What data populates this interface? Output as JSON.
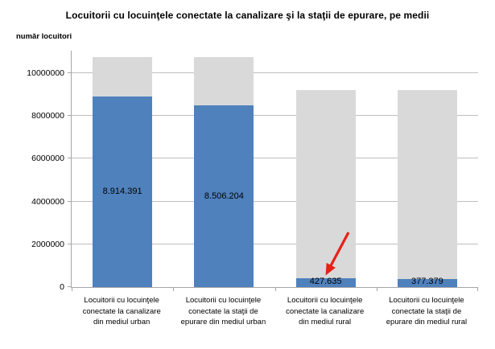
{
  "chart_data": {
    "type": "bar",
    "title": "Locuitorii cu locuinţele conectate la canalizare şi la staţii de epurare, pe medii",
    "ylabel": "număr locuitori",
    "xlabel": "",
    "grid": true,
    "legend": "none",
    "ylim": [
      0,
      11050000
    ],
    "yticks": [
      0,
      2000000,
      4000000,
      6000000,
      8000000,
      10000000
    ],
    "ytick_labels": [
      "0",
      "2000000",
      "4000000",
      "6000000",
      "8000000",
      "10000000"
    ],
    "categories": [
      [
        "Locuitorii cu locuinţele",
        "conectate la canalizare",
        "din mediul urban"
      ],
      [
        "Locuitorii cu locuinţele",
        "conectate la staţii de",
        "epurare din mediul urban"
      ],
      [
        "Locuitorii cu locuinţele",
        "conectate la canalizare",
        "din mediul rural"
      ],
      [
        "Locuitorii cu locuinţele",
        "conectate la staţii de",
        "epurare din mediul rural"
      ]
    ],
    "series": [
      {
        "name": "total-populatie-fundal",
        "color": "#d9d9d9",
        "values": [
          10750000,
          10750000,
          9200000,
          9200000
        ]
      },
      {
        "name": "locuitori-conectati",
        "color": "#4f81bd",
        "values": [
          8914391,
          8506204,
          427635,
          377379
        ]
      }
    ],
    "data_labels": [
      "8.914.391",
      "8.506.204",
      "427.635",
      "377.379"
    ],
    "annotation": {
      "shape": "red-arrow",
      "points_to": "427.635",
      "color": "#e62117"
    },
    "colors": {
      "gridline": "#bfbfbf",
      "axis": "#a6a6a6",
      "background": "#ffffff",
      "text": "#000000"
    }
  }
}
